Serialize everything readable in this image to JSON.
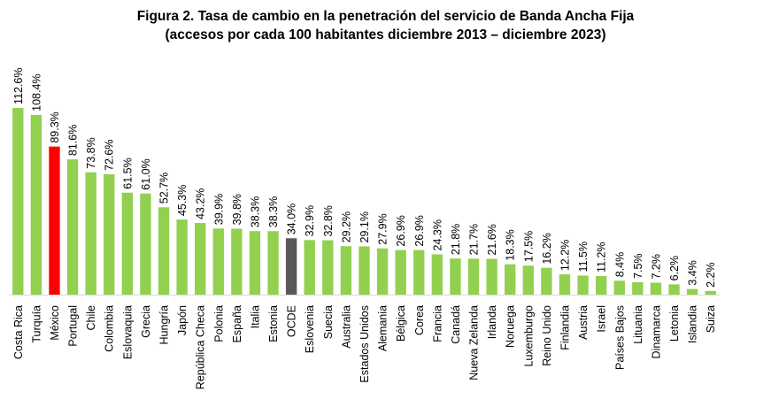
{
  "chart_data": {
    "type": "bar",
    "title": "Figura 2. Tasa de cambio en la penetración del servicio de Banda Ancha Fija",
    "subtitle": "(accesos por cada 100 habitantes diciembre 2013 – diciembre 2023)",
    "xlabel": "",
    "ylabel": "",
    "ylim": [
      0,
      112.6
    ],
    "value_suffix": "%",
    "grid": false,
    "legend": "none",
    "colors": {
      "default": "#92d050",
      "mexico": "#ff0000",
      "ocde": "#595959"
    },
    "categories": [
      "Costa Rica",
      "Turquía",
      "México",
      "Portugal",
      "Chile",
      "Colombia",
      "Eslovaquia",
      "Grecia",
      "Hungría",
      "Japón",
      "República Checa",
      "Polonia",
      "España",
      "Italia",
      "Estonia",
      "OCDE",
      "Eslovenia",
      "Suecia",
      "Australia",
      "Estados Unidos",
      "Alemania",
      "Bélgica",
      "Corea",
      "Francia",
      "Canadá",
      "Nueva Zelanda",
      "Irlanda",
      "Noruega",
      "Luxemburgo",
      "Reino Unido",
      "Finlandia",
      "Austria",
      "Israel",
      "Países Bajos",
      "Lituania",
      "Dinamarca",
      "Letonia",
      "Islandia",
      "Suiza"
    ],
    "values": [
      112.6,
      108.4,
      89.3,
      81.6,
      73.8,
      72.6,
      61.5,
      61.0,
      52.7,
      45.3,
      43.2,
      39.9,
      39.8,
      38.3,
      38.3,
      34.0,
      32.9,
      32.8,
      29.2,
      29.1,
      27.9,
      26.9,
      26.9,
      24.3,
      21.8,
      21.7,
      21.6,
      18.3,
      17.5,
      16.2,
      12.2,
      11.5,
      11.2,
      8.4,
      7.5,
      7.2,
      6.2,
      3.4,
      2.2
    ],
    "highlight": {
      "México": "mexico",
      "OCDE": "ocde"
    }
  }
}
